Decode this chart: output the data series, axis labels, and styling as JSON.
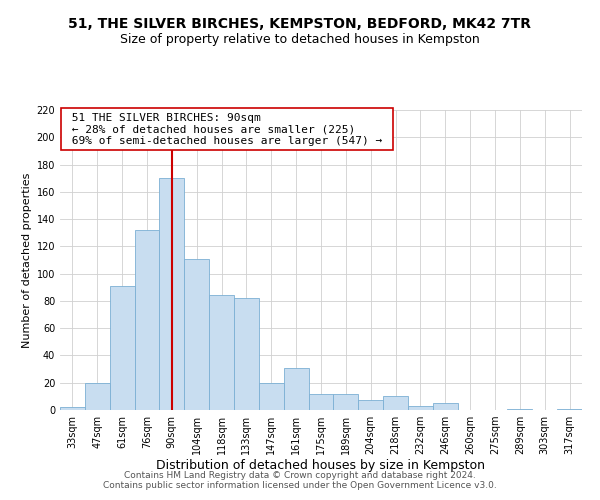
{
  "title": "51, THE SILVER BIRCHES, KEMPSTON, BEDFORD, MK42 7TR",
  "subtitle": "Size of property relative to detached houses in Kempston",
  "xlabel": "Distribution of detached houses by size in Kempston",
  "ylabel": "Number of detached properties",
  "footer_line1": "Contains HM Land Registry data © Crown copyright and database right 2024.",
  "footer_line2": "Contains public sector information licensed under the Open Government Licence v3.0.",
  "bin_labels": [
    "33sqm",
    "47sqm",
    "61sqm",
    "76sqm",
    "90sqm",
    "104sqm",
    "118sqm",
    "133sqm",
    "147sqm",
    "161sqm",
    "175sqm",
    "189sqm",
    "204sqm",
    "218sqm",
    "232sqm",
    "246sqm",
    "260sqm",
    "275sqm",
    "289sqm",
    "303sqm",
    "317sqm"
  ],
  "bar_values": [
    2,
    20,
    91,
    132,
    170,
    111,
    84,
    82,
    20,
    31,
    12,
    12,
    7,
    10,
    3,
    5,
    0,
    0,
    1,
    0,
    1
  ],
  "bar_color": "#c8ddf0",
  "bar_edge_color": "#7bafd4",
  "vline_x_index": 4,
  "vline_color": "#cc0000",
  "annotation_text_line1": "51 THE SILVER BIRCHES: 90sqm",
  "annotation_text_line2": "← 28% of detached houses are smaller (225)",
  "annotation_text_line3": "69% of semi-detached houses are larger (547) →",
  "ylim": [
    0,
    220
  ],
  "yticks": [
    0,
    20,
    40,
    60,
    80,
    100,
    120,
    140,
    160,
    180,
    200,
    220
  ],
  "grid_color": "#d0d0d0",
  "bg_color": "#ffffff",
  "title_fontsize": 10,
  "subtitle_fontsize": 9,
  "xlabel_fontsize": 9,
  "ylabel_fontsize": 8,
  "tick_fontsize": 7,
  "footer_fontsize": 6.5,
  "ann_fontsize": 8
}
